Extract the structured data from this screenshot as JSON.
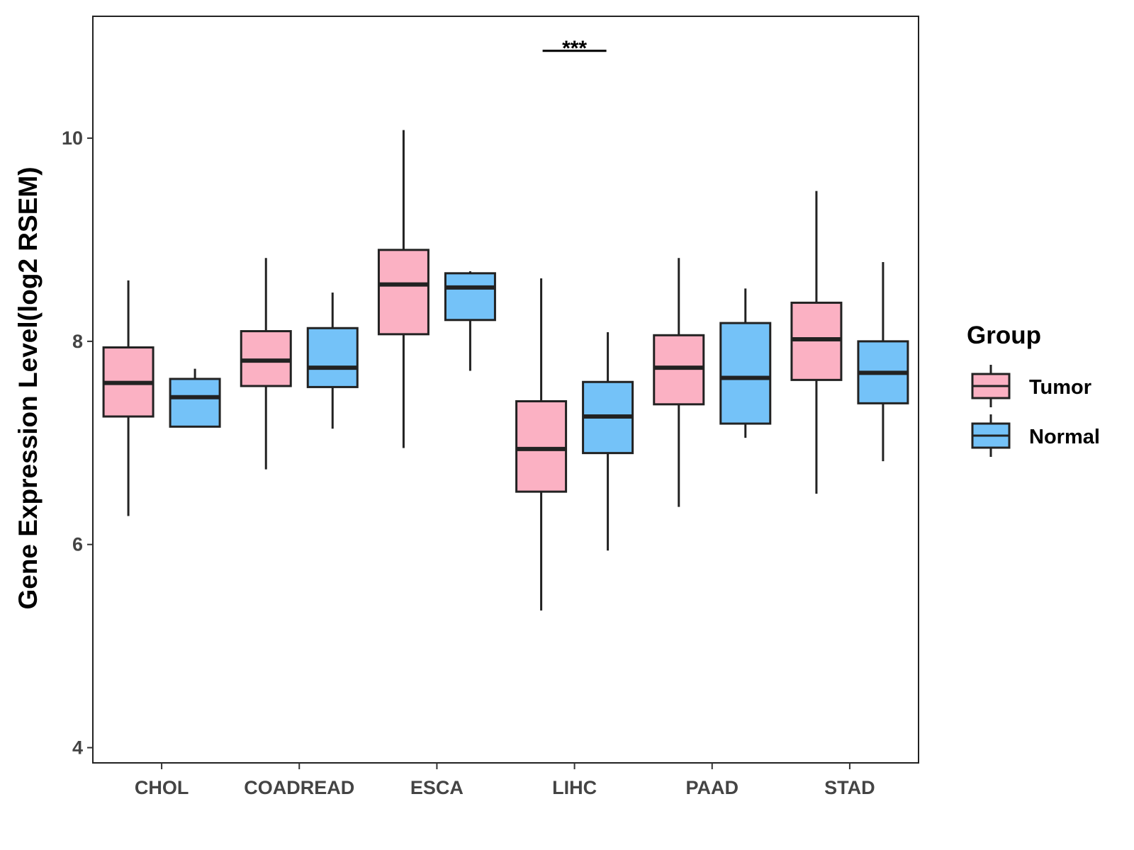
{
  "chart_data": {
    "type": "boxplot",
    "title": "",
    "xlabel": "",
    "ylabel": "Gene Expression Level(log2 RSEM)",
    "ylim": [
      3.85,
      11.2
    ],
    "yticks": [
      4,
      6,
      8,
      10
    ],
    "categories": [
      "CHOL",
      "COADREAD",
      "ESCA",
      "LIHC",
      "PAAD",
      "STAD"
    ],
    "legend": {
      "title": "Group",
      "position": "right",
      "entries": [
        {
          "name": "Tumor",
          "color": "#FBB1C3"
        },
        {
          "name": "Normal",
          "color": "#74C2F8"
        }
      ]
    },
    "series": [
      {
        "name": "Tumor",
        "color": "#FBB1C3",
        "boxes": [
          {
            "category": "CHOL",
            "min": 6.28,
            "q1": 7.26,
            "median": 7.59,
            "q3": 7.94,
            "max": 8.6
          },
          {
            "category": "COADREAD",
            "min": 6.74,
            "q1": 7.56,
            "median": 7.81,
            "q3": 8.1,
            "max": 8.82
          },
          {
            "category": "ESCA",
            "min": 6.95,
            "q1": 8.07,
            "median": 8.56,
            "q3": 8.9,
            "max": 10.08
          },
          {
            "category": "LIHC",
            "min": 5.35,
            "q1": 6.52,
            "median": 6.94,
            "q3": 7.41,
            "max": 8.62
          },
          {
            "category": "PAAD",
            "min": 6.37,
            "q1": 7.38,
            "median": 7.74,
            "q3": 8.06,
            "max": 8.82
          },
          {
            "category": "STAD",
            "min": 6.5,
            "q1": 7.62,
            "median": 8.02,
            "q3": 8.38,
            "max": 9.48
          }
        ]
      },
      {
        "name": "Normal",
        "color": "#74C2F8",
        "boxes": [
          {
            "category": "CHOL",
            "min": 7.16,
            "q1": 7.16,
            "median": 7.45,
            "q3": 7.63,
            "max": 7.73
          },
          {
            "category": "COADREAD",
            "min": 7.14,
            "q1": 7.55,
            "median": 7.74,
            "q3": 8.13,
            "max": 8.48
          },
          {
            "category": "ESCA",
            "min": 7.71,
            "q1": 8.21,
            "median": 8.53,
            "q3": 8.67,
            "max": 8.69
          },
          {
            "category": "LIHC",
            "min": 5.94,
            "q1": 6.9,
            "median": 7.26,
            "q3": 7.6,
            "max": 8.09
          },
          {
            "category": "PAAD",
            "min": 7.05,
            "q1": 7.19,
            "median": 7.64,
            "q3": 8.18,
            "max": 8.52
          },
          {
            "category": "STAD",
            "min": 6.82,
            "q1": 7.39,
            "median": 7.69,
            "q3": 8.0,
            "max": 8.78
          }
        ]
      }
    ],
    "annotations": [
      {
        "category": "LIHC",
        "label": "***",
        "y": 10.86
      }
    ]
  }
}
